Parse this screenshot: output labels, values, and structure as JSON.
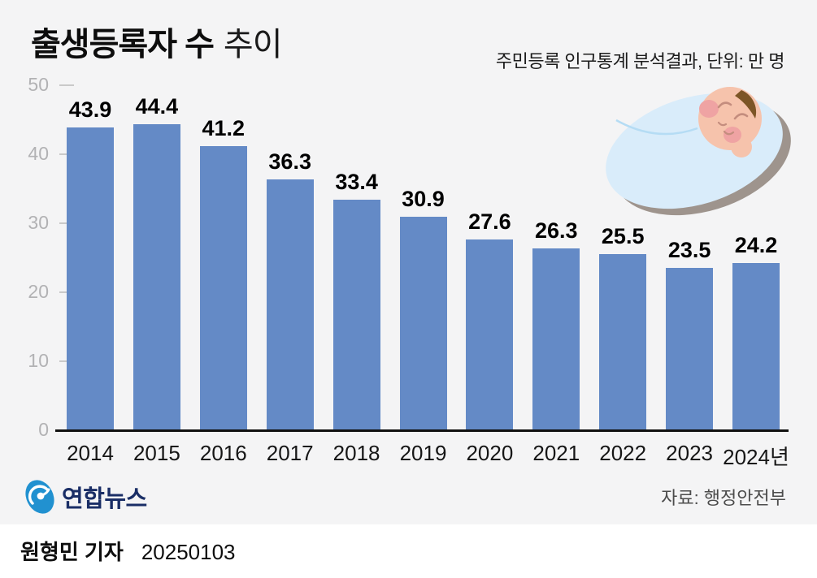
{
  "header": {
    "title_bold": "출생등록자 수",
    "title_light": "추이",
    "subtitle": "주민등록 인구통계 분석결과, 단위: 만 명"
  },
  "chart_data": {
    "type": "bar",
    "title": "출생등록자 수 추이",
    "unit": "만 명",
    "categories": [
      "2014",
      "2015",
      "2016",
      "2017",
      "2018",
      "2019",
      "2020",
      "2021",
      "2022",
      "2023",
      "2024년"
    ],
    "values": [
      43.9,
      44.4,
      41.2,
      36.3,
      33.4,
      30.9,
      27.6,
      26.3,
      25.5,
      23.5,
      24.2
    ],
    "ylim": [
      0,
      50
    ],
    "yticks": [
      50,
      40,
      30,
      20,
      10,
      0
    ],
    "grid": false,
    "value_labels": true,
    "bar_color": "#648ac6",
    "legend": "none"
  },
  "footer": {
    "logo_text": "연합뉴스",
    "source": "자료: 행정안전부",
    "reporter": "원형민 기자",
    "date": "20250103"
  },
  "colors": {
    "background": "#f4f4f5",
    "bar": "#648ac6",
    "axis": "#111111",
    "ytick_text": "#b2b2b4",
    "logo_navy": "#1a2e66",
    "logo_blue": "#2191d0",
    "swaddle": "#d9ecfa",
    "swaddle_shadow": "#9e948d",
    "baby_skin": "#f6c3ac",
    "baby_cheek": "#efa3a3",
    "baby_hair": "#7d5526"
  }
}
